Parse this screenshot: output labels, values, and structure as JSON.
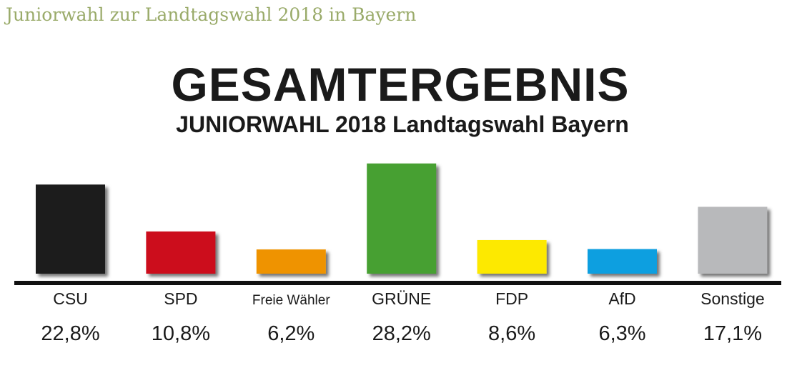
{
  "header": {
    "caption": "Juniorwahl zur Landtagswahl 2018 in Bayern"
  },
  "chart_data": {
    "type": "bar",
    "title": "GESAMTERGEBNIS",
    "subtitle": "JUNIORWAHL 2018 Landtagswahl Bayern",
    "categories": [
      "CSU",
      "SPD",
      "Freie Wähler",
      "GRÜNE",
      "FDP",
      "AfD",
      "Sonstige"
    ],
    "values": [
      22.8,
      10.8,
      6.2,
      28.2,
      8.6,
      6.3,
      17.1
    ],
    "value_labels": [
      "22,8%",
      "10,8%",
      "6,2%",
      "28,2%",
      "8,6%",
      "6,3%",
      "17,1%"
    ],
    "colors": [
      "#1c1a1d",
      "#cc0a1e",
      "#ef9300",
      "#47a032",
      "#fde900",
      "#0a9fe0",
      "#b8b9bb"
    ],
    "unit": "%",
    "xlabel": "",
    "ylabel": "",
    "grid": false
  }
}
